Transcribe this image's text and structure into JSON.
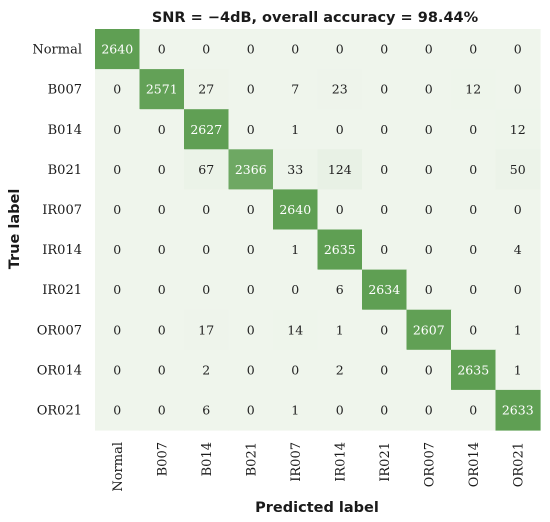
{
  "chart_data": {
    "type": "heatmap",
    "title": "SNR = −4dB, overall accuracy = 98.44%",
    "xlabel": "Predicted label",
    "ylabel": "True label",
    "labels": [
      "Normal",
      "B007",
      "B014",
      "B021",
      "IR007",
      "IR014",
      "IR021",
      "OR007",
      "OR014",
      "OR021"
    ],
    "matrix": [
      [
        2640,
        0,
        0,
        0,
        0,
        0,
        0,
        0,
        0,
        0
      ],
      [
        0,
        2571,
        27,
        0,
        7,
        23,
        0,
        0,
        12,
        0
      ],
      [
        0,
        0,
        2627,
        0,
        1,
        0,
        0,
        0,
        0,
        12
      ],
      [
        0,
        0,
        67,
        2366,
        33,
        124,
        0,
        0,
        0,
        50
      ],
      [
        0,
        0,
        0,
        0,
        2640,
        0,
        0,
        0,
        0,
        0
      ],
      [
        0,
        0,
        0,
        0,
        1,
        2635,
        0,
        0,
        0,
        4
      ],
      [
        0,
        0,
        0,
        0,
        0,
        6,
        2634,
        0,
        0,
        0
      ],
      [
        0,
        0,
        17,
        0,
        14,
        1,
        0,
        2607,
        0,
        1
      ],
      [
        0,
        0,
        2,
        0,
        0,
        2,
        0,
        0,
        2635,
        1
      ],
      [
        0,
        0,
        6,
        0,
        1,
        0,
        0,
        0,
        0,
        2633
      ]
    ],
    "colors": {
      "low": "#eff5ec",
      "high": "#5f9f53",
      "text_dark": "#222222",
      "text_light": "#ffffff"
    }
  }
}
